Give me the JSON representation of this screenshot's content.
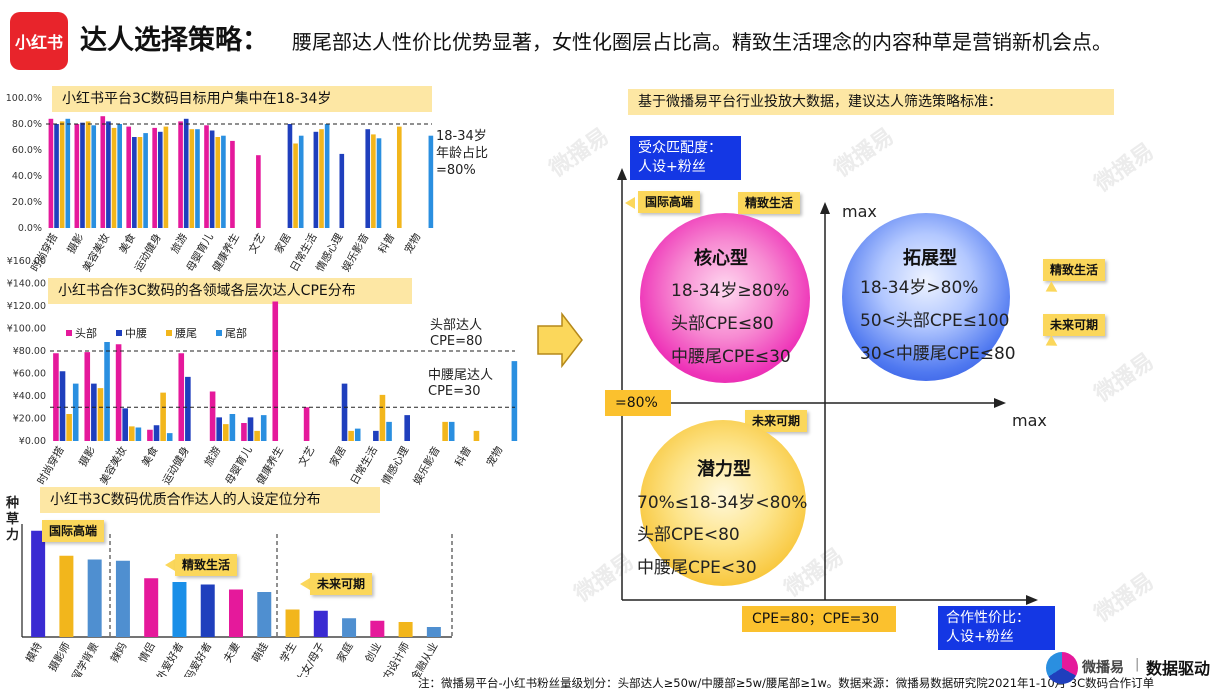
{
  "header": {
    "logo": "小红书",
    "title": "达人选择策略：",
    "subtitle": "腰尾部达人性价比优势显著，女性化圈层占比高。精致生活理念的内容种草是营销新机会点。"
  },
  "colors": {
    "pink": "#e5199b",
    "navy": "#1f3fbd",
    "gold": "#f2b61c",
    "sky": "#2a8fe0",
    "yellow_box": "#fde7a4",
    "blue_box": "#1437e4"
  },
  "chart_data": [
    {
      "type": "bar",
      "title": "小红书平台3C数码目标用户集中在18-34岁",
      "categories": [
        "时尚穿搭",
        "摄影",
        "美容美妆",
        "美食",
        "运动健身",
        "旅游",
        "母婴育儿",
        "健康养生",
        "文艺",
        "家居",
        "日常生活",
        "情感心理",
        "娱乐影音",
        "科普",
        "宠物"
      ],
      "series": [
        {
          "name": "头部",
          "values": [
            84,
            80,
            86,
            78,
            77,
            82,
            79,
            67,
            56,
            null,
            null,
            null,
            null,
            null,
            null
          ]
        },
        {
          "name": "中腰",
          "values": [
            80,
            81,
            82,
            70,
            74,
            84,
            75,
            null,
            null,
            80,
            74,
            57,
            76,
            null,
            null
          ]
        },
        {
          "name": "腰尾",
          "values": [
            82,
            82,
            77,
            70,
            78,
            76,
            70,
            null,
            null,
            65,
            76,
            null,
            72,
            78,
            null
          ]
        },
        {
          "name": "尾部",
          "values": [
            84,
            79,
            80,
            73,
            null,
            76,
            71,
            null,
            null,
            71,
            80,
            null,
            69,
            null,
            71
          ]
        }
      ],
      "ylim": [
        0,
        100
      ],
      "yticks": [
        "0.0%",
        "20.0%",
        "40.0%",
        "60.0%",
        "80.0%",
        "100.0%"
      ],
      "reference": 80,
      "annotation": [
        "18-34岁",
        "年龄占比",
        "=80%"
      ]
    },
    {
      "type": "bar",
      "title": "小红书合作3C数码的各领域各层次达人CPE分布",
      "categories": [
        "时尚穿搭",
        "摄影",
        "美容美妆",
        "美食",
        "运动健身",
        "旅游",
        "母婴育儿",
        "健康养生",
        "文艺",
        "家居",
        "日常生活",
        "情感心理",
        "娱乐影音",
        "科普",
        "宠物"
      ],
      "series": [
        {
          "name": "头部",
          "values": [
            78,
            79,
            86,
            10,
            78,
            44,
            16,
            124,
            30,
            null,
            null,
            null,
            null,
            null,
            null
          ]
        },
        {
          "name": "中腰",
          "values": [
            62,
            51,
            29,
            14,
            57,
            21,
            21,
            null,
            null,
            51,
            9,
            23,
            null,
            null,
            null
          ]
        },
        {
          "name": "腰尾",
          "values": [
            24,
            47,
            13,
            43,
            null,
            15,
            9,
            null,
            null,
            9,
            41,
            null,
            17,
            9,
            null
          ]
        },
        {
          "name": "尾部",
          "values": [
            51,
            88,
            12,
            7,
            null,
            24,
            23,
            null,
            null,
            11,
            17,
            null,
            17,
            null,
            71
          ]
        }
      ],
      "ylim": [
        0,
        160
      ],
      "yticks": [
        "¥0.00",
        "¥20.00",
        "¥40.00",
        "¥60.00",
        "¥80.00",
        "¥100.00",
        "¥120.00",
        "¥140.00",
        "¥160.00"
      ],
      "references": [
        80,
        30
      ],
      "annotations": [
        [
          "头部达人",
          "CPE=80"
        ],
        [
          "中腰尾达人",
          "CPE=30"
        ]
      ]
    },
    {
      "type": "bar",
      "title": "小红书3C数码优质合作达人的人设定位分布",
      "ylabel": "种草力",
      "categories": [
        "模特",
        "摄影师",
        "留学背景",
        "辣妈",
        "情侣",
        "户外爱好者",
        "数码爱好者",
        "夫妻",
        "萌娃",
        "学生",
        "大女/母子",
        "家庭",
        "创业",
        "室内设计师",
        "金融从业"
      ],
      "values": [
        85,
        65,
        62,
        61,
        47,
        44,
        42,
        38,
        36,
        22,
        21,
        15,
        13,
        12,
        8
      ],
      "colors": [
        "#3a2bd2",
        "#f2b61c",
        "#4f8fd0",
        "#4f8fd0",
        "#e5199b",
        "#1a8fe8",
        "#1f3fbd",
        "#e5199b",
        "#4f8fd0",
        "#f2b61c",
        "#3a2bd2",
        "#4f8fd0",
        "#e5199b",
        "#f2b61c",
        "#4f8fd0"
      ],
      "groups": [
        "国际高端",
        "精致生活",
        "未来可期"
      ]
    }
  ],
  "right": {
    "banner": "基于微播易平台行业投放大数据，建议达人筛选策略标准：",
    "y_axis_box": [
      "受众匹配度：",
      "人设+粉丝"
    ],
    "x_axis_box": [
      "合作性价比：",
      "人设+粉丝"
    ],
    "max_y": "max",
    "max_x": "max",
    "eighty_label": "=80%",
    "cpe_box": "CPE=80；CPE=30",
    "tags": {
      "intl": "国际高端",
      "refined1": "精致生活",
      "refined2": "精致生活",
      "future1": "未来可期",
      "future2": "未来可期"
    },
    "core": {
      "title": "核心型",
      "lines": [
        "18-34岁≥80%",
        "头部CPE≤80",
        "中腰尾CPE≤30"
      ]
    },
    "expand": {
      "title": "拓展型",
      "lines": [
        "18-34岁>80%",
        "50<头部CPE≤100",
        "30<中腰尾CPE≤80"
      ]
    },
    "potential": {
      "title": "潜力型",
      "lines": [
        "70%≤18-34岁<80%",
        "头部CPE<80",
        "中腰尾CPE<30"
      ]
    }
  },
  "footer": "注：微播易平台-小红书粉丝量级划分：头部达人≥50w/中腰部≥5w/腰尾部≥1w。数据来源：微播易数据研究院2021年1-10月 3C数码合作订单",
  "brand": {
    "name": "微播易",
    "slogan": "数据驱动"
  },
  "watermark": "微播易"
}
